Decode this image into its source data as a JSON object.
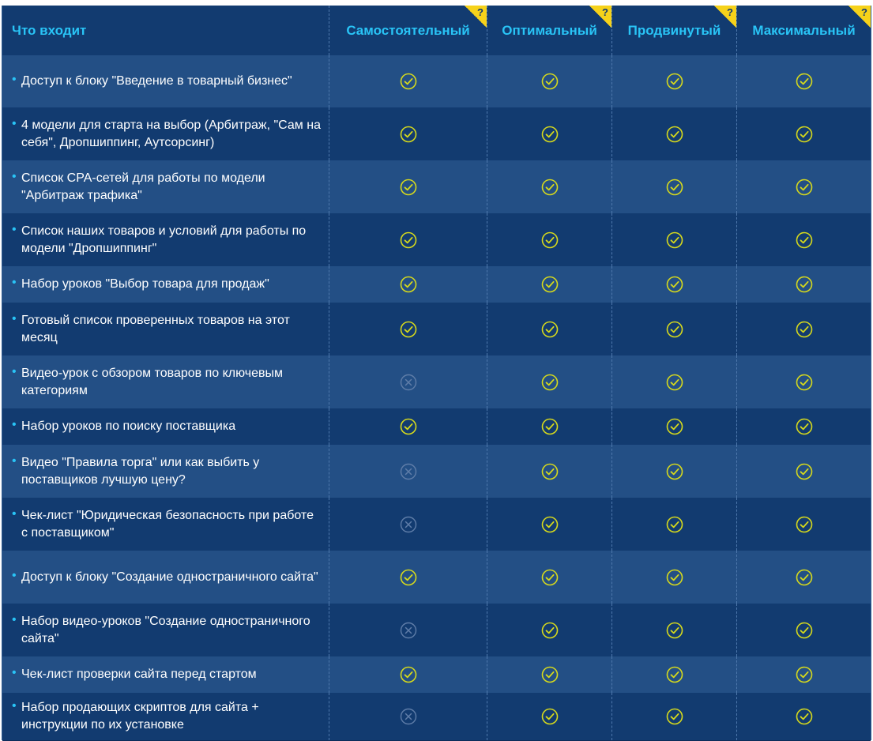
{
  "colors": {
    "accent": "#29c4f6",
    "check": "#d6d91c",
    "cross": "#5f7da8",
    "badge": "#f6d21a",
    "row_light": "#234f85",
    "row_dark": "#123b70"
  },
  "header": {
    "feature_col": "Что входит",
    "plans": [
      {
        "name": "Самостоятельный",
        "help": "?"
      },
      {
        "name": "Оптимальный",
        "help": "?"
      },
      {
        "name": "Продвинутый",
        "help": "?"
      },
      {
        "name": "Максимальный",
        "help": "?"
      }
    ]
  },
  "rows": [
    {
      "feature": "Доступ к блоку \"Введение в товарный бизнес\"",
      "marks": [
        "check-icon",
        "check-icon",
        "check-icon",
        "check-icon"
      ]
    },
    {
      "feature": "4 модели для старта на выбор (Арбитраж, \"Сам на себя\", Дропшиппинг, Аутсорсинг)",
      "marks": [
        "check-icon",
        "check-icon",
        "check-icon",
        "check-icon"
      ]
    },
    {
      "feature": "Список CPA-сетей для работы по модели \"Арбитраж трафика\"",
      "marks": [
        "check-icon",
        "check-icon",
        "check-icon",
        "check-icon"
      ]
    },
    {
      "feature": "Список наших товаров и условий для работы по модели \"Дропшиппинг\"",
      "marks": [
        "check-icon",
        "check-icon",
        "check-icon",
        "check-icon"
      ]
    },
    {
      "feature": "Набор уроков \"Выбор товара для продаж\"",
      "marks": [
        "check-icon",
        "check-icon",
        "check-icon",
        "check-icon"
      ]
    },
    {
      "feature": "Готовый список проверенных товаров на этот месяц",
      "marks": [
        "check-icon",
        "check-icon",
        "check-icon",
        "check-icon"
      ]
    },
    {
      "feature": "Видео-урок с обзором товаров по ключевым категориям",
      "marks": [
        "cross-icon",
        "check-icon",
        "check-icon",
        "check-icon"
      ]
    },
    {
      "feature": "Набор уроков по поиску поставщика",
      "marks": [
        "check-icon",
        "check-icon",
        "check-icon",
        "check-icon"
      ]
    },
    {
      "feature": "Видео \"Правила торга\" или как выбить у поставщиков лучшую цену?",
      "marks": [
        "cross-icon",
        "check-icon",
        "check-icon",
        "check-icon"
      ]
    },
    {
      "feature": "Чек-лист \"Юридическая безопасность при работе с поставщиком\"",
      "marks": [
        "cross-icon",
        "check-icon",
        "check-icon",
        "check-icon"
      ]
    },
    {
      "feature": "Доступ к блоку \"Создание одностраничного сайта\"",
      "marks": [
        "check-icon",
        "check-icon",
        "check-icon",
        "check-icon"
      ]
    },
    {
      "feature": "Набор видео-уроков \"Создание одностраничного сайта\"",
      "marks": [
        "cross-icon",
        "check-icon",
        "check-icon",
        "check-icon"
      ]
    },
    {
      "feature": "Чек-лист проверки сайта перед стартом",
      "marks": [
        "check-icon",
        "check-icon",
        "check-icon",
        "check-icon"
      ]
    },
    {
      "feature": "Набор продающих скриптов для сайта + инструкции по их установке",
      "marks": [
        "cross-icon",
        "check-icon",
        "check-icon",
        "check-icon"
      ]
    }
  ]
}
